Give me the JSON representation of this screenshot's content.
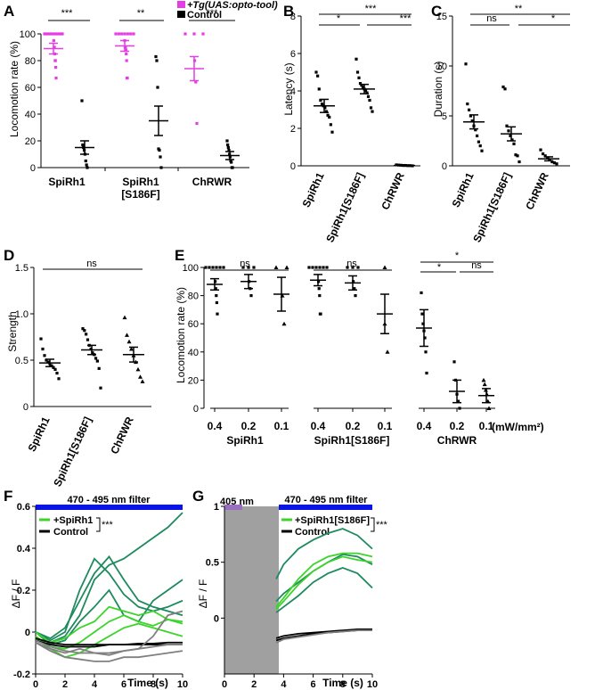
{
  "colors": {
    "magenta": "#e63ce6",
    "black": "#000000",
    "green_light": "#3cd42a",
    "green_dark": "#1e8a5e",
    "gray": "#808080",
    "blue": "#0a14e6",
    "purple": "#9a6fbf"
  },
  "panels": {
    "A": {
      "letter": "A",
      "ylabel": "Locomotion rate (%)",
      "legend": [
        "+Tg(UAS:opto-tool)",
        "Control"
      ],
      "groups": [
        "SpiRh1",
        "SpiRh1\n[S186F]",
        "ChRWR"
      ],
      "sig": [
        "***",
        "**",
        "***"
      ]
    },
    "B": {
      "letter": "B",
      "ylabel": "Latency (s)",
      "groups": [
        "SpiRh1",
        "SpiRh1[S186F]",
        "ChRWR"
      ],
      "sig": [
        "***",
        "*",
        "***"
      ]
    },
    "C": {
      "letter": "C",
      "ylabel": "Duration (s)",
      "groups": [
        "SpiRh1",
        "SpiRh1[S186F]",
        "ChRWR"
      ],
      "sig": [
        "**",
        "ns",
        "*"
      ]
    },
    "D": {
      "letter": "D",
      "ylabel": "Strength",
      "groups": [
        "SpiRh1",
        "SpiRh1[S186F]",
        "ChRWR"
      ],
      "sig": [
        "ns"
      ]
    },
    "E": {
      "letter": "E",
      "ylabel": "Locomotion rate (%)",
      "groups": [
        "SpiRh1",
        "SpiRh1[S186F]",
        "ChRWR"
      ],
      "intensities": [
        "0.4",
        "0.2",
        "0.1"
      ],
      "unit": "(mW/mm²)",
      "sig": [
        "ns",
        "ns",
        "*",
        "*",
        "ns"
      ]
    },
    "F": {
      "letter": "F",
      "ylabel": "ΔF / F",
      "xlabel": "Time (s)",
      "filter": "470 - 495 nm filter",
      "legend": [
        "+SpiRh1",
        "Control"
      ],
      "sig": "***"
    },
    "G": {
      "letter": "G",
      "ylabel": "ΔF / F",
      "xlabel": "Time (s)",
      "filter": "470 - 495 nm filter",
      "stim": "405 nm",
      "legend": [
        "+SpiRh1[S186F]",
        "Control"
      ],
      "sig": "***"
    }
  },
  "chart_data": [
    {
      "type": "scatter",
      "panel": "A",
      "ylabel": "Locomotion rate (%)",
      "ylim": [
        0,
        100
      ],
      "yticks": [
        0,
        20,
        40,
        60,
        80,
        100
      ],
      "categories": [
        "SpiRh1",
        "SpiRh1\n[S186F]",
        "ChRWR"
      ],
      "series": [
        {
          "name": "+Tg(UAS:opto-tool)",
          "mean": [
            89,
            91,
            74
          ],
          "sem": [
            4,
            4,
            9
          ],
          "points": [
            [
              100,
              100,
              100,
              100,
              100,
              100,
              100,
              100,
              100,
              95,
              90,
              90,
              85,
              80,
              80,
              75,
              67
            ],
            [
              100,
              100,
              100,
              100,
              100,
              100,
              100,
              95,
              90,
              90,
              88,
              85,
              80,
              67,
              67
            ],
            [
              100,
              100,
              100,
              80,
              64,
              33
            ]
          ]
        },
        {
          "name": "Control",
          "mean": [
            15,
            35,
            9
          ],
          "sem": [
            5,
            11,
            3
          ],
          "points": [
            [
              50,
              17,
              15,
              13,
              10,
              5,
              2,
              0
            ],
            [
              83,
              80,
              60,
              14,
              13,
              8,
              0
            ],
            [
              20,
              17,
              15,
              13,
              10,
              8,
              5,
              4,
              0,
              0
            ]
          ]
        }
      ]
    },
    {
      "type": "scatter",
      "panel": "B",
      "ylabel": "Latency (s)",
      "ylim": [
        0,
        8
      ],
      "yticks": [
        0,
        2,
        4,
        6,
        8
      ],
      "categories": [
        "SpiRh1",
        "SpiRh1[S186F]",
        "ChRWR"
      ],
      "mean": [
        3.2,
        4.1,
        0.02
      ],
      "sem": [
        0.35,
        0.25,
        0.01
      ],
      "points": [
        [
          5.0,
          4.8,
          4.1,
          3.5,
          3.3,
          3.2,
          3.1,
          2.9,
          2.7,
          2.6,
          2.2,
          1.8
        ],
        [
          5.7,
          5.0,
          4.7,
          4.4,
          4.3,
          4.2,
          4.1,
          4.0,
          3.9,
          3.7,
          3.5,
          3.1,
          2.9
        ],
        [
          0.05,
          0.04,
          0.03,
          0.02,
          0.02,
          0.01,
          0.01,
          0.0
        ]
      ]
    },
    {
      "type": "scatter",
      "panel": "C",
      "ylabel": "Duration (s)",
      "ylim": [
        0,
        15
      ],
      "yticks": [
        0,
        5,
        10,
        15
      ],
      "categories": [
        "SpiRh1",
        "SpiRh1[S186F]",
        "ChRWR"
      ],
      "mean": [
        4.4,
        3.2,
        0.7
      ],
      "sem": [
        0.7,
        0.7,
        0.2
      ],
      "points": [
        [
          10.2,
          6.2,
          5.6,
          5.0,
          4.5,
          4.0,
          3.6,
          3.0,
          2.4,
          2.0,
          1.5
        ],
        [
          7.9,
          7.7,
          4.0,
          3.5,
          3.0,
          2.6,
          2.2,
          1.1,
          1.0,
          0.4
        ],
        [
          1.6,
          1.2,
          1.0,
          0.8,
          0.6,
          0.4,
          0.3,
          0.2
        ]
      ]
    },
    {
      "type": "scatter",
      "panel": "D",
      "ylabel": "Strength",
      "ylim": [
        0,
        1.5
      ],
      "yticks": [
        0,
        0.5,
        1.0,
        1.5
      ],
      "categories": [
        "SpiRh1",
        "SpiRh1[S186F]",
        "ChRWR"
      ],
      "mean": [
        0.47,
        0.61,
        0.56
      ],
      "sem": [
        0.04,
        0.05,
        0.08
      ],
      "points": [
        [
          0.73,
          0.62,
          0.55,
          0.5,
          0.48,
          0.46,
          0.44,
          0.42,
          0.4,
          0.36,
          0.3
        ],
        [
          0.84,
          0.82,
          0.78,
          0.72,
          0.66,
          0.62,
          0.58,
          0.56,
          0.52,
          0.49,
          0.41,
          0.2
        ],
        [
          0.96,
          0.77,
          0.7,
          0.62,
          0.55,
          0.48,
          0.4,
          0.32,
          0.27
        ]
      ]
    },
    {
      "type": "scatter",
      "panel": "E",
      "ylabel": "Locomotion rate (%)",
      "ylim": [
        0,
        100
      ],
      "yticks": [
        0,
        20,
        40,
        60,
        80,
        100
      ],
      "categories": [
        "0.4",
        "0.2",
        "0.1"
      ],
      "groups": [
        "SpiRh1",
        "SpiRh1[S186F]",
        "ChRWR"
      ],
      "mean": [
        [
          88,
          90,
          81
        ],
        [
          91,
          89,
          67
        ],
        [
          57,
          12,
          9
        ]
      ],
      "sem": [
        [
          4,
          5,
          12
        ],
        [
          4,
          5,
          14
        ],
        [
          13,
          8,
          5
        ]
      ],
      "points": [
        [
          [
            100,
            100,
            100,
            100,
            100,
            100,
            90,
            85,
            80,
            75,
            67
          ],
          [
            100,
            100,
            100,
            90,
            85,
            80
          ],
          [
            100,
            100,
            80,
            60
          ]
        ],
        [
          [
            100,
            100,
            100,
            100,
            100,
            100,
            90,
            85,
            80,
            67,
            67
          ],
          [
            100,
            100,
            100,
            90,
            85,
            80
          ],
          [
            100,
            60,
            40
          ]
        ],
        [
          [
            82,
            67,
            60,
            55,
            50,
            40,
            25
          ],
          [
            33,
            20,
            10,
            5,
            0
          ],
          [
            20,
            17,
            13,
            10,
            5,
            0
          ]
        ]
      ]
    },
    {
      "type": "line",
      "panel": "F",
      "xlabel": "Time (s)",
      "ylabel": "ΔF / F",
      "xlim": [
        0,
        10
      ],
      "ylim": [
        -0.2,
        0.6
      ],
      "xticks": [
        0,
        2,
        4,
        6,
        8,
        10
      ],
      "yticks": [
        -0.2,
        0,
        0.2,
        0.4,
        0.6
      ],
      "series": [
        {
          "name": "+SpiRh1",
          "color": "dark",
          "x": [
            0,
            1,
            2,
            3,
            4,
            5,
            6,
            7,
            8,
            9,
            10
          ],
          "y": [
            0,
            -0.05,
            -0.02,
            0.08,
            0.25,
            0.32,
            0.35,
            0.4,
            0.45,
            0.5,
            0.57
          ]
        },
        {
          "name": "+SpiRh1",
          "color": "dark",
          "x": [
            0,
            1,
            2,
            3,
            4,
            5,
            6,
            7,
            8,
            9,
            10
          ],
          "y": [
            0,
            -0.04,
            0.0,
            0.2,
            0.35,
            0.28,
            0.18,
            0.12,
            0.1,
            0.12,
            0.15
          ]
        },
        {
          "name": "+SpiRh1",
          "color": "dark",
          "x": [
            0,
            1,
            2,
            3,
            4,
            5,
            6,
            7,
            8,
            9,
            10
          ],
          "y": [
            0,
            -0.03,
            0.02,
            0.15,
            0.28,
            0.36,
            0.25,
            0.15,
            0.12,
            0.1,
            0.08
          ]
        },
        {
          "name": "+SpiRh1",
          "color": "dark",
          "x": [
            0,
            1,
            2,
            3,
            4,
            5,
            6,
            7,
            8,
            9,
            10
          ],
          "y": [
            0,
            -0.06,
            -0.04,
            0.05,
            0.12,
            0.2,
            0.08,
            0.05,
            0.15,
            0.2,
            0.25
          ]
        },
        {
          "name": "+SpiRh1",
          "color": "light",
          "x": [
            0,
            1,
            2,
            3,
            4,
            5,
            6,
            7,
            8,
            9,
            10
          ],
          "y": [
            0,
            -0.05,
            -0.03,
            0.02,
            0.05,
            0.12,
            0.1,
            0.08,
            0.1,
            0.06,
            0.05
          ]
        },
        {
          "name": "+SpiRh1",
          "color": "light",
          "x": [
            0,
            1,
            2,
            3,
            4,
            5,
            6,
            7,
            8,
            9,
            10
          ],
          "y": [
            -0.02,
            -0.07,
            -0.08,
            -0.05,
            0.0,
            0.05,
            0.08,
            0.05,
            0.03,
            0.06,
            0.04
          ]
        },
        {
          "name": "+SpiRh1",
          "color": "light",
          "x": [
            0,
            1,
            2,
            3,
            4,
            5,
            6,
            7,
            8,
            9,
            10
          ],
          "y": [
            -0.03,
            -0.08,
            -0.12,
            -0.1,
            -0.06,
            -0.02,
            0.02,
            0.04,
            0.02,
            0.0,
            -0.02
          ]
        },
        {
          "name": "Control",
          "color": "black",
          "x": [
            0,
            1,
            2,
            3,
            4,
            5,
            6,
            7,
            8,
            9,
            10
          ],
          "y": [
            -0.03,
            -0.05,
            -0.06,
            -0.06,
            -0.06,
            -0.06,
            -0.06,
            -0.055,
            -0.055,
            -0.05,
            -0.05
          ]
        },
        {
          "name": "Control",
          "color": "black",
          "x": [
            0,
            1,
            2,
            3,
            4,
            5,
            6,
            7,
            8,
            9,
            10
          ],
          "y": [
            -0.04,
            -0.06,
            -0.07,
            -0.07,
            -0.07,
            -0.06,
            -0.06,
            -0.06,
            -0.06,
            -0.06,
            -0.06
          ]
        },
        {
          "name": "Control",
          "color": "gray",
          "x": [
            0,
            1,
            2,
            3,
            4,
            5,
            6,
            7,
            8,
            9,
            10
          ],
          "y": [
            -0.05,
            -0.09,
            -0.12,
            -0.13,
            -0.14,
            -0.14,
            -0.12,
            -0.12,
            -0.11,
            -0.1,
            -0.09
          ]
        },
        {
          "name": "Control",
          "color": "gray",
          "x": [
            0,
            1,
            2,
            3,
            4,
            5,
            6,
            7,
            8,
            9,
            10
          ],
          "y": [
            -0.04,
            -0.07,
            -0.09,
            -0.1,
            -0.1,
            -0.1,
            -0.09,
            -0.08,
            -0.07,
            -0.06,
            -0.06
          ]
        },
        {
          "name": "Control",
          "color": "gray",
          "x": [
            0,
            1,
            2,
            3,
            4,
            5,
            6,
            7,
            8,
            9,
            10
          ],
          "y": [
            -0.05,
            -0.08,
            -0.1,
            -0.08,
            -0.1,
            -0.11,
            -0.09,
            -0.08,
            -0.02,
            0.08,
            0.1
          ]
        }
      ]
    },
    {
      "type": "line",
      "panel": "G",
      "xlabel": "Time (s)",
      "ylabel": "ΔF / F",
      "xlim": [
        0,
        10
      ],
      "ylim": [
        -0.5,
        1.0
      ],
      "xticks": [
        0,
        2,
        4,
        6,
        8,
        10
      ],
      "yticks": [
        0,
        0.5,
        1.0
      ],
      "series": [
        {
          "name": "+SpiRh1[S186F]",
          "color": "dark",
          "x": [
            3.5,
            4,
            5,
            6,
            7,
            8,
            9,
            10
          ],
          "y": [
            0.35,
            0.48,
            0.62,
            0.7,
            0.76,
            0.8,
            0.74,
            0.62
          ]
        },
        {
          "name": "+SpiRh1[S186F]",
          "color": "dark",
          "x": [
            3.5,
            4,
            5,
            6,
            7,
            8,
            9,
            10
          ],
          "y": [
            0.15,
            0.22,
            0.32,
            0.42,
            0.5,
            0.57,
            0.55,
            0.48
          ]
        },
        {
          "name": "+SpiRh1[S186F]",
          "color": "light",
          "x": [
            3.5,
            4,
            5,
            6,
            7,
            8,
            9,
            10
          ],
          "y": [
            0.1,
            0.18,
            0.35,
            0.48,
            0.55,
            0.58,
            0.58,
            0.55
          ]
        },
        {
          "name": "+SpiRh1[S186F]",
          "color": "light",
          "x": [
            3.5,
            4,
            5,
            6,
            7,
            8,
            9,
            10
          ],
          "y": [
            0.08,
            0.15,
            0.3,
            0.42,
            0.5,
            0.55,
            0.52,
            0.5
          ]
        },
        {
          "name": "+SpiRh1[S186F]",
          "color": "dark",
          "x": [
            3.5,
            4,
            5,
            6,
            7,
            8,
            9,
            10
          ],
          "y": [
            0.05,
            0.1,
            0.2,
            0.32,
            0.4,
            0.45,
            0.4,
            0.27
          ]
        },
        {
          "name": "Control",
          "color": "black",
          "x": [
            3.5,
            4,
            5,
            6,
            7,
            8,
            9,
            10
          ],
          "y": [
            -0.18,
            -0.16,
            -0.14,
            -0.13,
            -0.12,
            -0.11,
            -0.1,
            -0.1
          ]
        },
        {
          "name": "Control",
          "color": "black",
          "x": [
            3.5,
            4,
            5,
            6,
            7,
            8,
            9,
            10
          ],
          "y": [
            -0.2,
            -0.18,
            -0.16,
            -0.14,
            -0.13,
            -0.12,
            -0.11,
            -0.1
          ]
        },
        {
          "name": "Control",
          "color": "gray",
          "x": [
            3.5,
            4,
            5,
            6,
            7,
            8,
            9,
            10
          ],
          "y": [
            -0.22,
            -0.19,
            -0.17,
            -0.15,
            -0.13,
            -0.12,
            -0.11,
            -0.11
          ]
        }
      ]
    }
  ]
}
